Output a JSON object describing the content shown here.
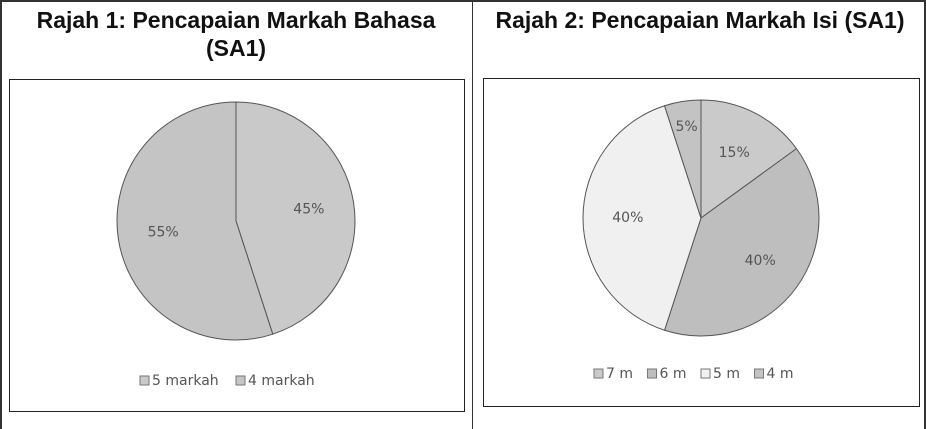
{
  "chart_data": [
    {
      "type": "pie",
      "title": "Rajah 1: Pencapaian Markah Bahasa (SA1)",
      "categories": [
        "5 markah",
        "4 markah"
      ],
      "values": [
        45,
        55
      ],
      "value_labels": [
        "45%",
        "55%"
      ],
      "colors": [
        "#c9c9c9",
        "#c4c4c4"
      ]
    },
    {
      "type": "pie",
      "title": "Rajah 2: Pencapaian Markah Isi (SA1)",
      "categories": [
        "7 m",
        "6 m",
        "5 m",
        "4 m"
      ],
      "values": [
        15,
        40,
        40,
        5
      ],
      "value_labels": [
        "15%",
        "40%",
        "40%",
        "5%"
      ],
      "colors": [
        "#cacaca",
        "#bebebe",
        "#f0f0f0",
        "#c3c3c3"
      ]
    }
  ]
}
